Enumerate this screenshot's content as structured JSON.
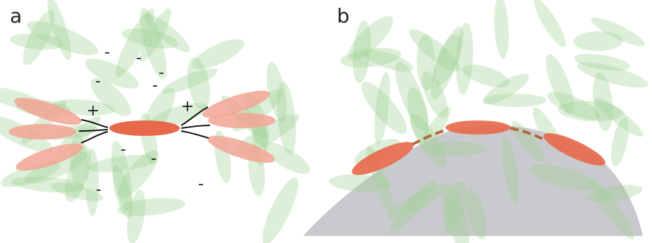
{
  "panels": [
    {
      "label": "a",
      "charges": [
        "-",
        "-",
        "-",
        "-",
        "-",
        "-",
        "-",
        "-",
        "-",
        "+",
        "+"
      ]
    },
    {
      "label": "b"
    }
  ]
}
